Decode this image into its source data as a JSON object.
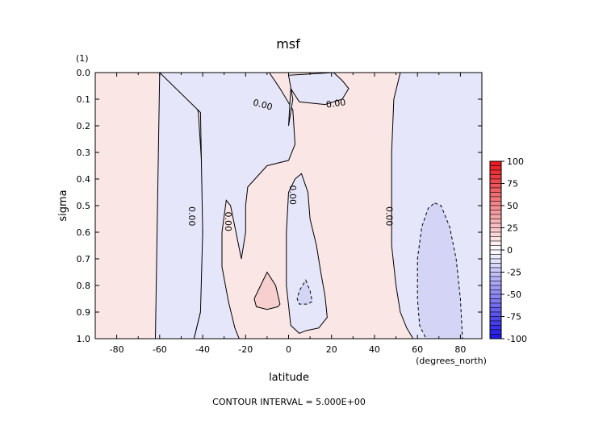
{
  "chart_data": {
    "type": "contour",
    "title": "msf",
    "units_label": "(1)",
    "xlabel": "latitude",
    "x_units_note": "(degrees_north)",
    "ylabel": "sigma",
    "footer": "CONTOUR INTERVAL = 5.000E+00",
    "xlim": [
      -90,
      90
    ],
    "ylim": [
      0.0,
      1.0
    ],
    "y_inverted": true,
    "x_ticks": [
      -80,
      -60,
      -40,
      -20,
      0,
      20,
      40,
      60,
      80
    ],
    "x_tick_labels": [
      "-80",
      "-60",
      "-40",
      "-20",
      "0",
      "20",
      "40",
      "60",
      "80"
    ],
    "y_ticks": [
      0.0,
      0.1,
      0.2,
      0.3,
      0.4,
      0.5,
      0.6,
      0.7,
      0.8,
      0.9,
      1.0
    ],
    "y_tick_labels": [
      "0.0",
      "0.1",
      "0.2",
      "0.3",
      "0.4",
      "0.5",
      "0.6",
      "0.7",
      "0.8",
      "0.9",
      "1.0"
    ],
    "colorbar": {
      "min": -100,
      "max": 100,
      "tick_values": [
        100,
        75,
        50,
        25,
        0,
        -25,
        -50,
        -75,
        -100
      ],
      "tick_labels": [
        "100",
        "75",
        "50",
        "25",
        "0",
        "-25",
        "-50",
        "-75",
        "-100"
      ],
      "colors": {
        "high": "#e8141c",
        "mid": "#ffffff",
        "low": "#1c14e8"
      }
    },
    "fill_colors": {
      "positive": "#fbe6e6",
      "negative": "#e6e6fa",
      "positive_strong": "#f8cfcf",
      "negative_strong": "#d4d4f6"
    },
    "contour_labels": [
      {
        "text": "0.00",
        "x": -12,
        "y": 0.12,
        "angle": 15
      },
      {
        "text": "0.00",
        "x": 22,
        "y": 0.115,
        "angle": -8
      },
      {
        "text": "0.00",
        "x": -45,
        "y": 0.54,
        "angle": 90
      },
      {
        "text": "0.00",
        "x": -28,
        "y": 0.56,
        "angle": 90
      },
      {
        "text": "0.00",
        "x": 2,
        "y": 0.46,
        "angle": 90
      },
      {
        "text": "0.00",
        "x": 47,
        "y": 0.54,
        "angle": 90
      }
    ],
    "regions": [
      {
        "sign": "negative",
        "level": 0,
        "points": [
          [
            -60,
            0.0
          ],
          [
            -47,
            0.0
          ],
          [
            -42,
            0.15
          ],
          [
            -40,
            0.4
          ],
          [
            -40,
            0.6
          ],
          [
            -40,
            0.8
          ],
          [
            -41,
            0.9
          ],
          [
            -44,
            1.0
          ],
          [
            -62,
            1.0
          ]
        ]
      },
      {
        "sign": "negative",
        "level": 0,
        "points": [
          [
            -60,
            0.0
          ],
          [
            -9,
            0.0
          ],
          [
            -4,
            0.06
          ],
          [
            2,
            0.14
          ],
          [
            3,
            0.27
          ],
          [
            0,
            0.33
          ],
          [
            -10,
            0.35
          ],
          [
            -19,
            0.43
          ],
          [
            -20,
            0.5
          ],
          [
            -20,
            0.6
          ],
          [
            -22,
            0.7
          ],
          [
            -25,
            0.58
          ],
          [
            -27,
            0.5
          ],
          [
            -29,
            0.48
          ],
          [
            -31,
            0.6
          ],
          [
            -31,
            0.73
          ],
          [
            -28,
            0.86
          ],
          [
            -25,
            0.96
          ],
          [
            -23,
            1.0
          ],
          [
            -44,
            1.0
          ],
          [
            -41,
            0.9
          ],
          [
            -40,
            0.6
          ],
          [
            -41,
            0.15
          ]
        ]
      },
      {
        "sign": "negative",
        "level": 0,
        "points": [
          [
            0,
            0.2
          ],
          [
            2,
            0.1
          ],
          [
            0,
            0.01
          ],
          [
            21,
            0.0
          ],
          [
            25,
            0.03
          ],
          [
            28,
            0.06
          ],
          [
            25,
            0.1
          ],
          [
            17,
            0.12
          ],
          [
            5,
            0.11
          ],
          [
            1,
            0.06
          ]
        ]
      },
      {
        "sign": "negative",
        "level": 0,
        "points": [
          [
            3,
            0.4
          ],
          [
            6,
            0.38
          ],
          [
            9,
            0.45
          ],
          [
            10,
            0.55
          ],
          [
            13,
            0.65
          ],
          [
            15,
            0.75
          ],
          [
            17,
            0.84
          ],
          [
            18,
            0.92
          ],
          [
            14,
            0.96
          ],
          [
            8,
            0.97
          ],
          [
            5,
            0.98
          ],
          [
            1,
            0.95
          ],
          [
            -1,
            0.8
          ],
          [
            -1,
            0.6
          ],
          [
            0,
            0.45
          ]
        ]
      },
      {
        "sign": "negative",
        "level": 0,
        "points": [
          [
            52,
            0.0
          ],
          [
            90,
            0.0
          ],
          [
            90,
            1.0
          ],
          [
            58,
            1.0
          ],
          [
            55,
            0.96
          ],
          [
            52,
            0.9
          ],
          [
            50,
            0.8
          ],
          [
            48,
            0.65
          ],
          [
            48,
            0.5
          ],
          [
            48,
            0.3
          ],
          [
            49,
            0.1
          ]
        ]
      },
      {
        "sign": "positive_strong",
        "level": 5,
        "points": [
          [
            -10,
            0.75
          ],
          [
            -6,
            0.8
          ],
          [
            -4,
            0.87
          ],
          [
            -5,
            0.88
          ],
          [
            -10,
            0.89
          ],
          [
            -15,
            0.88
          ],
          [
            -16,
            0.85
          ],
          [
            -13,
            0.8
          ]
        ]
      },
      {
        "sign": "negative_strong",
        "level": -5,
        "points": [
          [
            8,
            0.78
          ],
          [
            10,
            0.82
          ],
          [
            11,
            0.86
          ],
          [
            9,
            0.87
          ],
          [
            5,
            0.87
          ],
          [
            4,
            0.85
          ],
          [
            5,
            0.82
          ]
        ]
      },
      {
        "sign": "negative_strong",
        "level": -5,
        "points": [
          [
            68,
            0.49
          ],
          [
            71,
            0.5
          ],
          [
            75,
            0.58
          ],
          [
            78,
            0.7
          ],
          [
            80,
            0.85
          ],
          [
            81,
            1.0
          ],
          [
            64,
            1.0
          ],
          [
            61,
            0.95
          ],
          [
            60,
            0.85
          ],
          [
            60,
            0.7
          ],
          [
            62,
            0.58
          ],
          [
            65,
            0.51
          ]
        ]
      }
    ]
  }
}
